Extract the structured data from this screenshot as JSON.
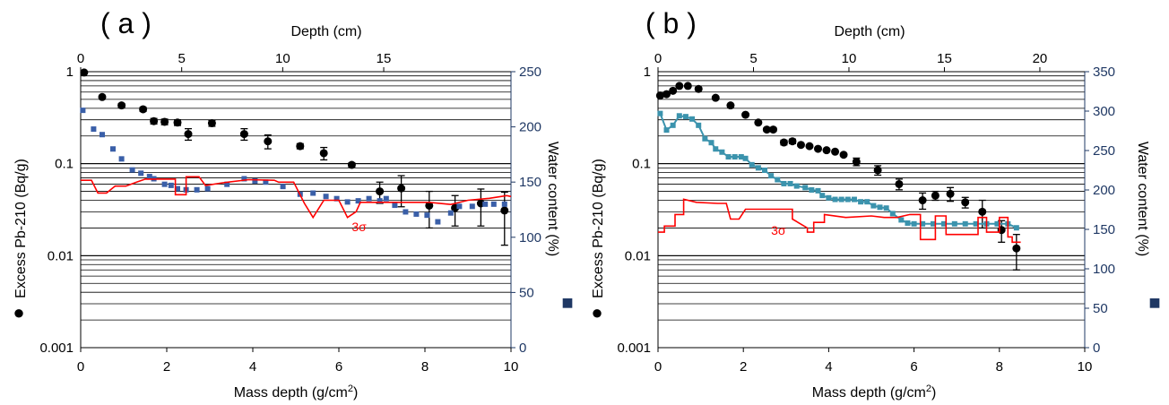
{
  "colors": {
    "grid": "#000000",
    "left_axis": "#000000",
    "right_axis": "#1f3864",
    "sigma_line": "#ff0000",
    "water_a": "#3a5fa8",
    "water_b": "#3b93ad",
    "pb": "#000000"
  },
  "chart_data": [
    {
      "type": "scatter",
      "panel_label": "( a )",
      "top_xlabel": "Depth (cm)",
      "top_xlim": [
        0,
        21.3
      ],
      "top_ticks": [
        "0",
        "5",
        "10",
        "15"
      ],
      "top_tick_values": [
        0,
        5,
        10,
        15
      ],
      "xlabel_main": "Mass depth (g/cm",
      "xlabel_sup": "2",
      "xlabel_end": ")",
      "xlim": [
        0,
        10
      ],
      "x_ticks": [
        "0",
        "2",
        "4",
        "6",
        "8",
        "10"
      ],
      "ylabel": "Excess Pb-210 (Bq/g)",
      "ylabel_marker": "●",
      "y_log": true,
      "ylim": [
        0.001,
        1
      ],
      "y_ticks": [
        "0.001",
        "0.01",
        "0.1",
        "1"
      ],
      "y2label": "Water content (%)",
      "y2label_marker": "■",
      "y2lim": [
        0,
        250
      ],
      "y2_ticks": [
        "0",
        "50",
        "100",
        "150",
        "200",
        "250"
      ],
      "sigma_label": "3σ",
      "sigma_label_at": [
        6.3,
        0.0185
      ],
      "grid": true,
      "series": [
        {
          "kind": "pb210",
          "points": [
            {
              "x": 0.08,
              "y": 0.98,
              "err": 0
            },
            {
              "x": 0.5,
              "y": 0.53,
              "err": 0
            },
            {
              "x": 0.95,
              "y": 0.43,
              "err": 0.02
            },
            {
              "x": 1.45,
              "y": 0.39,
              "err": 0.02
            },
            {
              "x": 1.7,
              "y": 0.29,
              "err": 0.02
            },
            {
              "x": 1.95,
              "y": 0.285,
              "err": 0.02
            },
            {
              "x": 2.25,
              "y": 0.28,
              "err": 0.02
            },
            {
              "x": 2.5,
              "y": 0.21,
              "err": 0.03
            },
            {
              "x": 3.05,
              "y": 0.275,
              "err": 0.02
            },
            {
              "x": 3.8,
              "y": 0.21,
              "err": 0.03
            },
            {
              "x": 4.35,
              "y": 0.175,
              "err": 0.03
            },
            {
              "x": 5.1,
              "y": 0.155,
              "err": 0.01
            },
            {
              "x": 5.65,
              "y": 0.13,
              "err": 0.02
            },
            {
              "x": 6.3,
              "y": 0.097,
              "err": 0.005
            },
            {
              "x": 6.95,
              "y": 0.05,
              "err": 0.013
            },
            {
              "x": 7.45,
              "y": 0.054,
              "err": 0.02
            },
            {
              "x": 8.1,
              "y": 0.035,
              "err": 0.015
            },
            {
              "x": 8.7,
              "y": 0.033,
              "err": 0.012
            },
            {
              "x": 9.3,
              "y": 0.037,
              "err": 0.016
            },
            {
              "x": 9.85,
              "y": 0.031,
              "err": 0.018
            }
          ]
        },
        {
          "kind": "water",
          "values": [
            [
              0.05,
              215
            ],
            [
              0.3,
              198
            ],
            [
              0.5,
              193
            ],
            [
              0.75,
              180
            ],
            [
              0.95,
              171
            ],
            [
              1.2,
              161
            ],
            [
              1.4,
              158
            ],
            [
              1.6,
              155
            ],
            [
              1.7,
              153
            ],
            [
              1.95,
              148
            ],
            [
              2.1,
              147
            ],
            [
              2.25,
              144
            ],
            [
              2.45,
              143
            ],
            [
              2.7,
              143
            ],
            [
              2.95,
              144
            ],
            [
              3.4,
              148
            ],
            [
              3.8,
              153
            ],
            [
              4.05,
              151
            ],
            [
              4.3,
              150
            ],
            [
              4.7,
              146
            ],
            [
              5.1,
              139
            ],
            [
              5.4,
              140
            ],
            [
              5.7,
              137
            ],
            [
              5.95,
              135
            ],
            [
              6.2,
              132
            ],
            [
              6.45,
              133
            ],
            [
              6.7,
              135
            ],
            [
              6.95,
              133
            ],
            [
              7.1,
              135
            ],
            [
              7.3,
              129
            ],
            [
              7.55,
              123
            ],
            [
              7.8,
              121
            ],
            [
              8.05,
              120
            ],
            [
              8.3,
              114
            ],
            [
              8.6,
              122
            ],
            [
              8.8,
              128
            ],
            [
              9.1,
              128
            ],
            [
              9.4,
              130
            ],
            [
              9.6,
              130
            ],
            [
              9.85,
              130
            ]
          ]
        },
        {
          "kind": "sigma",
          "values": [
            [
              0,
              0.066
            ],
            [
              0.25,
              0.066
            ],
            [
              0.4,
              0.048
            ],
            [
              0.6,
              0.048
            ],
            [
              0.8,
              0.057
            ],
            [
              1.05,
              0.057
            ],
            [
              1.3,
              0.063
            ],
            [
              1.5,
              0.068
            ],
            [
              2.2,
              0.068
            ],
            [
              2.2,
              0.046
            ],
            [
              2.45,
              0.046
            ],
            [
              2.45,
              0.072
            ],
            [
              2.75,
              0.072
            ],
            [
              2.9,
              0.058
            ],
            [
              3.3,
              0.062
            ],
            [
              3.9,
              0.067
            ],
            [
              4.5,
              0.066
            ],
            [
              4.6,
              0.063
            ],
            [
              4.95,
              0.063
            ],
            [
              5.2,
              0.037
            ],
            [
              5.4,
              0.026
            ],
            [
              5.65,
              0.04
            ],
            [
              6.0,
              0.04
            ],
            [
              6.2,
              0.026
            ],
            [
              6.4,
              0.03
            ],
            [
              6.5,
              0.038
            ],
            [
              8.1,
              0.038
            ],
            [
              8.6,
              0.036
            ],
            [
              9.0,
              0.04
            ],
            [
              9.5,
              0.042
            ],
            [
              9.9,
              0.045
            ],
            [
              10,
              0.044
            ]
          ]
        }
      ]
    },
    {
      "type": "scatter",
      "panel_label": "( b )",
      "top_xlabel": "Depth (cm)",
      "top_xlim": [
        0,
        22.35
      ],
      "top_ticks": [
        "0",
        "5",
        "10",
        "15",
        "20"
      ],
      "top_tick_values": [
        0,
        5,
        10,
        15,
        20
      ],
      "xlabel_main": "Mass depth (g/cm",
      "xlabel_sup": "2",
      "xlabel_end": ")",
      "xlim": [
        0,
        10
      ],
      "x_ticks": [
        "0",
        "2",
        "4",
        "6",
        "8",
        "10"
      ],
      "ylabel": "Excess Pb-210 (Bq/g)",
      "ylabel_marker": "●",
      "y_log": true,
      "ylim": [
        0.001,
        1
      ],
      "y_ticks": [
        "0.001",
        "0.01",
        "0.1",
        "1"
      ],
      "y2label": "Water content (%)",
      "y2label_marker": "■",
      "y2lim": [
        0,
        350
      ],
      "y2_ticks": [
        "0",
        "50",
        "100",
        "150",
        "200",
        "250",
        "300",
        "350"
      ],
      "sigma_label": "3σ",
      "sigma_label_at": [
        2.65,
        0.0168
      ],
      "grid": true,
      "series": [
        {
          "kind": "pb210",
          "points": [
            {
              "x": 0.05,
              "y": 0.55,
              "err": 0
            },
            {
              "x": 0.2,
              "y": 0.57,
              "err": 0
            },
            {
              "x": 0.35,
              "y": 0.62,
              "err": 0
            },
            {
              "x": 0.5,
              "y": 0.7,
              "err": 0
            },
            {
              "x": 0.7,
              "y": 0.7,
              "err": 0
            },
            {
              "x": 0.95,
              "y": 0.65,
              "err": 0
            },
            {
              "x": 1.35,
              "y": 0.52,
              "err": 0
            },
            {
              "x": 1.7,
              "y": 0.43,
              "err": 0
            },
            {
              "x": 2.05,
              "y": 0.34,
              "err": 0
            },
            {
              "x": 2.35,
              "y": 0.28,
              "err": 0
            },
            {
              "x": 2.55,
              "y": 0.235,
              "err": 0.01
            },
            {
              "x": 2.7,
              "y": 0.235,
              "err": 0.01
            },
            {
              "x": 2.95,
              "y": 0.17,
              "err": 0.01
            },
            {
              "x": 3.15,
              "y": 0.175,
              "err": 0.01
            },
            {
              "x": 3.35,
              "y": 0.16,
              "err": 0.005
            },
            {
              "x": 3.55,
              "y": 0.155,
              "err": 0
            },
            {
              "x": 3.75,
              "y": 0.145,
              "err": 0
            },
            {
              "x": 3.95,
              "y": 0.14,
              "err": 0
            },
            {
              "x": 4.15,
              "y": 0.135,
              "err": 0
            },
            {
              "x": 4.35,
              "y": 0.125,
              "err": 0
            },
            {
              "x": 4.65,
              "y": 0.105,
              "err": 0.01
            },
            {
              "x": 5.15,
              "y": 0.085,
              "err": 0.01
            },
            {
              "x": 5.65,
              "y": 0.06,
              "err": 0.008
            },
            {
              "x": 6.2,
              "y": 0.04,
              "err": 0.008
            },
            {
              "x": 6.5,
              "y": 0.045,
              "err": 0.005
            },
            {
              "x": 6.85,
              "y": 0.047,
              "err": 0.008
            },
            {
              "x": 7.2,
              "y": 0.038,
              "err": 0.005
            },
            {
              "x": 7.6,
              "y": 0.03,
              "err": 0.01
            },
            {
              "x": 8.05,
              "y": 0.019,
              "err": 0.005
            },
            {
              "x": 8.4,
              "y": 0.012,
              "err": 0.005
            }
          ]
        },
        {
          "kind": "water",
          "values": [
            [
              0.05,
              297
            ],
            [
              0.2,
              276
            ],
            [
              0.35,
              282
            ],
            [
              0.5,
              294
            ],
            [
              0.65,
              293
            ],
            [
              0.8,
              290
            ],
            [
              0.95,
              282
            ],
            [
              1.1,
              265
            ],
            [
              1.25,
              260
            ],
            [
              1.35,
              252
            ],
            [
              1.5,
              248
            ],
            [
              1.65,
              242
            ],
            [
              1.8,
              242
            ],
            [
              1.95,
              242
            ],
            [
              2.05,
              240
            ],
            [
              2.2,
              232
            ],
            [
              2.35,
              228
            ],
            [
              2.5,
              225
            ],
            [
              2.65,
              218
            ],
            [
              2.8,
              213
            ],
            [
              2.95,
              208
            ],
            [
              3.1,
              208
            ],
            [
              3.25,
              205
            ],
            [
              3.45,
              203
            ],
            [
              3.6,
              200
            ],
            [
              3.75,
              199
            ],
            [
              3.85,
              193
            ],
            [
              4.0,
              190
            ],
            [
              4.15,
              188
            ],
            [
              4.3,
              188
            ],
            [
              4.45,
              188
            ],
            [
              4.6,
              188
            ],
            [
              4.75,
              185
            ],
            [
              4.9,
              185
            ],
            [
              5.05,
              180
            ],
            [
              5.2,
              178
            ],
            [
              5.35,
              177
            ],
            [
              5.5,
              170
            ],
            [
              5.7,
              162
            ],
            [
              5.85,
              158
            ],
            [
              6.0,
              157
            ],
            [
              6.2,
              157
            ],
            [
              6.45,
              157
            ],
            [
              6.7,
              157
            ],
            [
              6.95,
              157
            ],
            [
              7.2,
              157
            ],
            [
              7.45,
              157
            ],
            [
              7.7,
              157
            ],
            [
              7.95,
              157
            ],
            [
              8.2,
              157
            ],
            [
              8.4,
              152
            ]
          ]
        },
        {
          "kind": "sigma",
          "values": [
            [
              0,
              0.018
            ],
            [
              0.15,
              0.018
            ],
            [
              0.15,
              0.021
            ],
            [
              0.4,
              0.021
            ],
            [
              0.4,
              0.028
            ],
            [
              0.6,
              0.028
            ],
            [
              0.6,
              0.041
            ],
            [
              0.9,
              0.038
            ],
            [
              1.4,
              0.037
            ],
            [
              1.6,
              0.037
            ],
            [
              1.7,
              0.025
            ],
            [
              1.9,
              0.025
            ],
            [
              2.05,
              0.032
            ],
            [
              2.9,
              0.032
            ],
            [
              3.15,
              0.032
            ],
            [
              3.15,
              0.025
            ],
            [
              3.5,
              0.02
            ],
            [
              3.5,
              0.018
            ],
            [
              3.65,
              0.018
            ],
            [
              3.65,
              0.023
            ],
            [
              3.9,
              0.023
            ],
            [
              3.9,
              0.028
            ],
            [
              4.4,
              0.026
            ],
            [
              5.0,
              0.027
            ],
            [
              5.3,
              0.026
            ],
            [
              5.6,
              0.026
            ],
            [
              5.9,
              0.028
            ],
            [
              6.15,
              0.028
            ],
            [
              6.15,
              0.015
            ],
            [
              6.5,
              0.015
            ],
            [
              6.5,
              0.027
            ],
            [
              6.75,
              0.027
            ],
            [
              6.75,
              0.017
            ],
            [
              7.5,
              0.017
            ],
            [
              7.5,
              0.026
            ],
            [
              7.7,
              0.026
            ],
            [
              7.7,
              0.018
            ],
            [
              8.0,
              0.018
            ],
            [
              8.0,
              0.026
            ],
            [
              8.2,
              0.026
            ],
            [
              8.2,
              0.016
            ],
            [
              8.3,
              0.016
            ],
            [
              8.3,
              0.014
            ],
            [
              8.5,
              0.014
            ]
          ]
        }
      ]
    }
  ]
}
